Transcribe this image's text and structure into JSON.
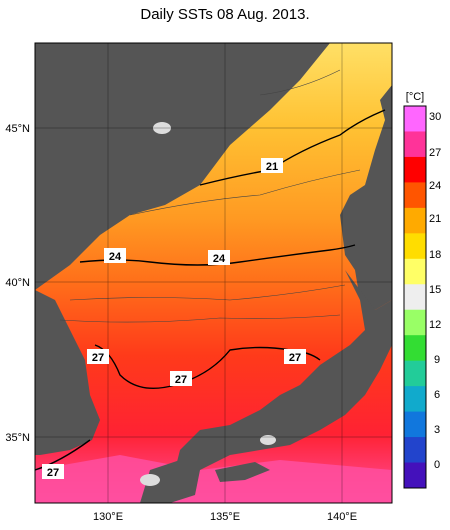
{
  "title": "Daily SSTs 08 Aug. 2013.",
  "map": {
    "lat_labels": [
      "45°N",
      "40°N",
      "35°N"
    ],
    "lon_labels": [
      "130°E",
      "135°E",
      "140°E"
    ],
    "isotherm_labels": [
      "21",
      "24",
      "24",
      "27",
      "27",
      "27",
      "27"
    ]
  },
  "colorbar": {
    "unit": "[°C]",
    "ticks": [
      "30",
      "27",
      "24",
      "21",
      "18",
      "15",
      "12",
      "9",
      "6",
      "3",
      "0"
    ],
    "colors": [
      "#ff66ff",
      "#ff3399",
      "#ff0000",
      "#ff5500",
      "#ffaa00",
      "#ffdd00",
      "#ffff66",
      "#eeeeee",
      "#99ff66",
      "#33dd33",
      "#22cc99",
      "#11aacc",
      "#1177dd",
      "#2244cc",
      "#4411bb"
    ]
  },
  "colors": {
    "land": "#555555",
    "sea_warm": "#ff2a1a",
    "sea_orange": "#ff7a1a",
    "sea_amber": "#ffaa22",
    "sea_yellow": "#ffd84a",
    "sea_pink": "#ff4fa0"
  }
}
